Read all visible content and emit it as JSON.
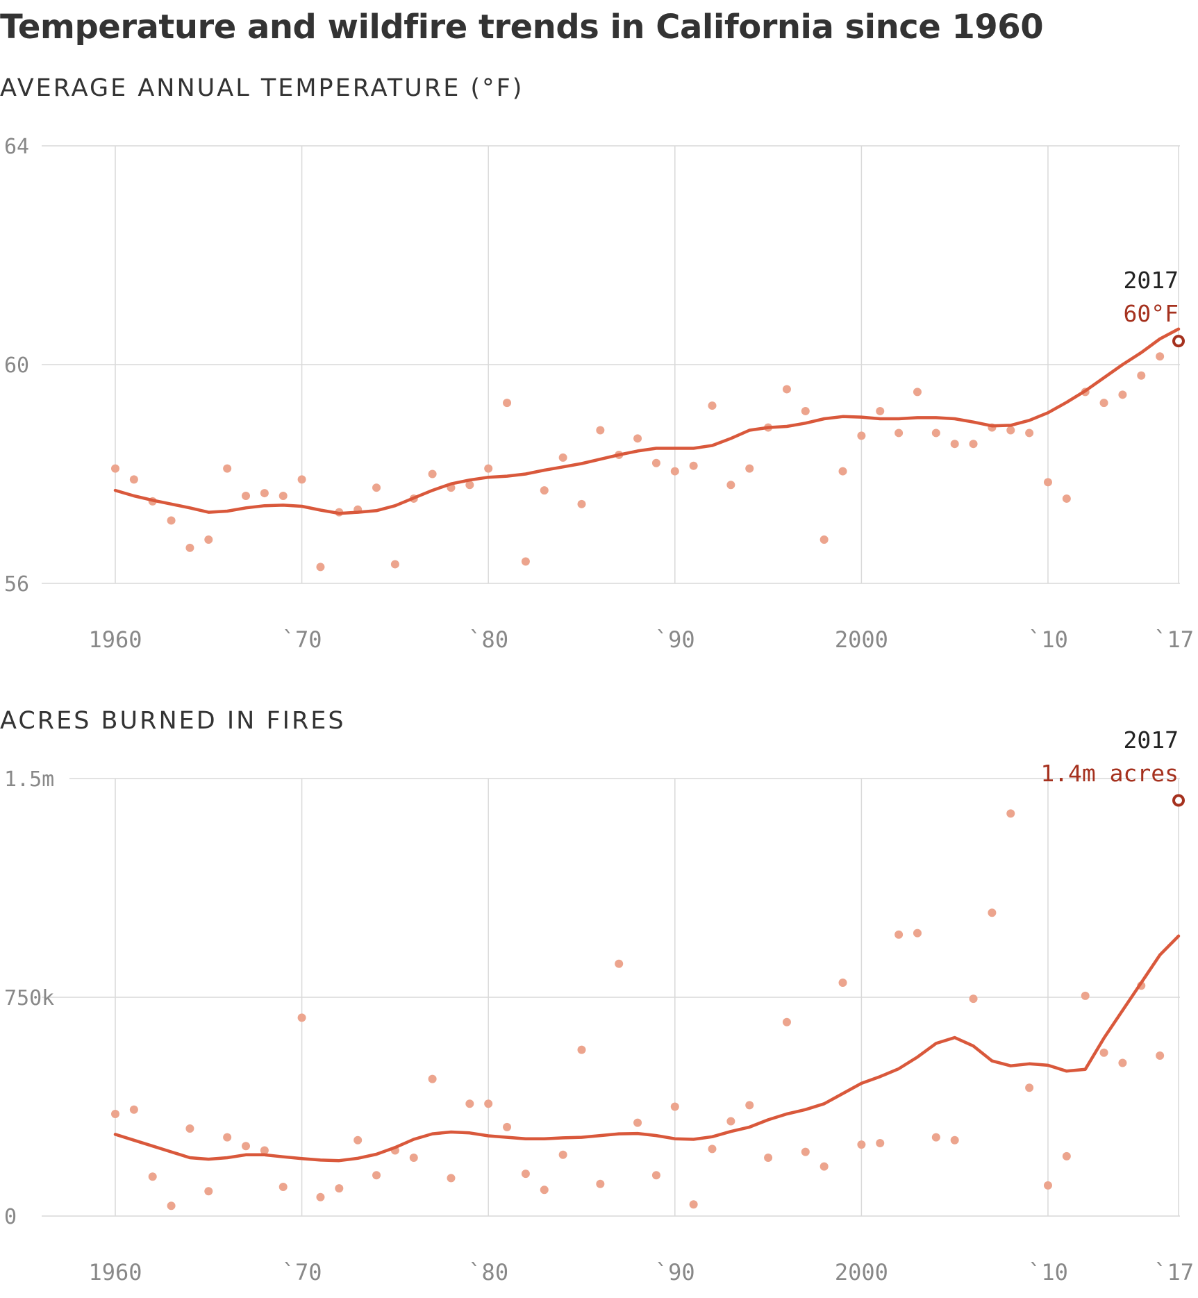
{
  "title": "Temperature and wildfire trends in California since 1960",
  "colors": {
    "trend": "#d9583b",
    "points": "#eca48d",
    "highlight": "#a5311e",
    "grid": "#d9d9d9",
    "text": "#333333",
    "ticks": "#888888"
  },
  "chart_data": [
    {
      "type": "scatter",
      "title": "AVERAGE ANNUAL TEMPERATURE (°F)",
      "xlabel": "",
      "ylabel": "",
      "xlim": [
        1960,
        2017
      ],
      "ylim": [
        56,
        64
      ],
      "x_ticks": [
        1960,
        1970,
        1980,
        1990,
        2000,
        2010,
        2017
      ],
      "x_tick_labels": [
        "1960",
        "`70",
        "`80",
        "`90",
        "2000",
        "`10",
        "`17"
      ],
      "y_ticks": [
        56,
        60,
        64
      ],
      "y_tick_labels": [
        "56",
        "60",
        "64"
      ],
      "grid": true,
      "annotation": {
        "year_label": "2017",
        "value_label": "60°F",
        "x": 2017,
        "y": 60.43
      },
      "series": [
        {
          "type": "scatter",
          "x": [
            1960,
            1961,
            1962,
            1963,
            1964,
            1965,
            1966,
            1967,
            1968,
            1969,
            1970,
            1971,
            1972,
            1973,
            1974,
            1975,
            1976,
            1977,
            1978,
            1979,
            1980,
            1981,
            1982,
            1983,
            1984,
            1985,
            1986,
            1987,
            1988,
            1989,
            1990,
            1991,
            1992,
            1993,
            1994,
            1995,
            1996,
            1997,
            1998,
            1999,
            2000,
            2001,
            2002,
            2003,
            2004,
            2005,
            2006,
            2007,
            2008,
            2009,
            2010,
            2011,
            2012,
            2013,
            2014,
            2015,
            2016
          ],
          "values": [
            58.1,
            57.9,
            57.5,
            57.15,
            56.65,
            56.8,
            58.1,
            57.6,
            57.65,
            57.6,
            57.9,
            56.3,
            57.3,
            57.35,
            57.75,
            56.35,
            57.55,
            58.0,
            57.75,
            57.8,
            58.1,
            59.3,
            56.4,
            57.7,
            58.3,
            57.45,
            58.8,
            58.35,
            58.65,
            58.2,
            58.05,
            58.15,
            59.25,
            57.8,
            58.1,
            58.85,
            59.55,
            59.15,
            56.8,
            58.05,
            58.7,
            59.15,
            58.75,
            59.5,
            58.75,
            58.55,
            58.55,
            58.85,
            58.8,
            58.75,
            57.85,
            57.55,
            59.5,
            59.3,
            59.45,
            59.8,
            60.15
          ]
        },
        {
          "type": "line",
          "x": [
            1960,
            1961,
            1962,
            1963,
            1964,
            1965,
            1966,
            1967,
            1968,
            1969,
            1970,
            1971,
            1972,
            1973,
            1974,
            1975,
            1976,
            1977,
            1978,
            1979,
            1980,
            1981,
            1982,
            1983,
            1984,
            1985,
            1986,
            1987,
            1988,
            1989,
            1990,
            1991,
            1992,
            1993,
            1994,
            1995,
            1996,
            1997,
            1998,
            1999,
            2000,
            2001,
            2002,
            2003,
            2004,
            2005,
            2006,
            2007,
            2008,
            2009,
            2010,
            2011,
            2012,
            2013,
            2014,
            2015,
            2016,
            2017
          ],
          "values": [
            57.7,
            57.6,
            57.52,
            57.45,
            57.38,
            57.3,
            57.32,
            57.38,
            57.42,
            57.43,
            57.41,
            57.34,
            57.28,
            57.3,
            57.33,
            57.42,
            57.56,
            57.7,
            57.82,
            57.89,
            57.94,
            57.96,
            58.0,
            58.07,
            58.13,
            58.19,
            58.27,
            58.35,
            58.42,
            58.47,
            58.47,
            58.47,
            58.52,
            58.65,
            58.8,
            58.85,
            58.87,
            58.93,
            59.01,
            59.05,
            59.04,
            59.01,
            59.01,
            59.03,
            59.03,
            59.01,
            58.95,
            58.88,
            58.89,
            58.98,
            59.12,
            59.31,
            59.52,
            59.76,
            60.0,
            60.22,
            60.47,
            60.65
          ]
        },
        {
          "type": "scatter",
          "x": [
            2017
          ],
          "values": [
            60.43
          ]
        }
      ]
    },
    {
      "type": "scatter",
      "title": "ACRES BURNED IN FIRES",
      "xlabel": "",
      "ylabel": "",
      "xlim": [
        1960,
        2017
      ],
      "ylim": [
        0,
        1500000
      ],
      "x_ticks": [
        1960,
        1970,
        1980,
        1990,
        2000,
        2010,
        2017
      ],
      "x_tick_labels": [
        "1960",
        "`70",
        "`80",
        "`90",
        "2000",
        "`10",
        "`17"
      ],
      "y_ticks": [
        0,
        750000,
        1500000
      ],
      "y_tick_labels": [
        "0",
        "750k",
        "1.5m"
      ],
      "grid": true,
      "annotation": {
        "year_label": "2017",
        "value_label": "1.4m acres",
        "x": 2017,
        "y": 1425000
      },
      "series": [
        {
          "type": "scatter",
          "x": [
            1960,
            1961,
            1962,
            1963,
            1964,
            1965,
            1966,
            1967,
            1968,
            1969,
            1970,
            1971,
            1972,
            1973,
            1974,
            1975,
            1976,
            1977,
            1978,
            1979,
            1980,
            1981,
            1982,
            1983,
            1984,
            1985,
            1986,
            1987,
            1988,
            1989,
            1990,
            1991,
            1992,
            1993,
            1994,
            1995,
            1996,
            1997,
            1998,
            1999,
            2000,
            2001,
            2002,
            2003,
            2004,
            2005,
            2006,
            2007,
            2008,
            2009,
            2010,
            2011,
            2012,
            2013,
            2014,
            2015,
            2016
          ],
          "values": [
            350000,
            365000,
            135000,
            35000,
            300000,
            85000,
            270000,
            240000,
            225000,
            100000,
            680000,
            65000,
            95000,
            260000,
            140000,
            225000,
            200000,
            470000,
            130000,
            385000,
            385000,
            305000,
            145000,
            90000,
            210000,
            570000,
            110000,
            865000,
            320000,
            140000,
            375000,
            40000,
            230000,
            325000,
            380000,
            200000,
            665000,
            220000,
            170000,
            800000,
            245000,
            250000,
            965000,
            970000,
            270000,
            260000,
            745000,
            1040000,
            1380000,
            440000,
            105000,
            205000,
            755000,
            560000,
            525000,
            790000,
            550000
          ]
        },
        {
          "type": "line",
          "x": [
            1960,
            1961,
            1962,
            1963,
            1964,
            1965,
            1966,
            1967,
            1968,
            1969,
            1970,
            1971,
            1972,
            1973,
            1974,
            1975,
            1976,
            1977,
            1978,
            1979,
            1980,
            1981,
            1982,
            1983,
            1984,
            1985,
            1986,
            1987,
            1988,
            1989,
            1990,
            1991,
            1992,
            1993,
            1994,
            1995,
            1996,
            1997,
            1998,
            1999,
            2000,
            2001,
            2002,
            2003,
            2004,
            2005,
            2006,
            2007,
            2008,
            2009,
            2010,
            2011,
            2012,
            2013,
            2014,
            2015,
            2016,
            2017
          ],
          "values": [
            280000,
            260000,
            240000,
            220000,
            200000,
            195000,
            200000,
            210000,
            210000,
            203000,
            197000,
            192000,
            190000,
            198000,
            212000,
            235000,
            263000,
            282000,
            288000,
            285000,
            275000,
            270000,
            265000,
            265000,
            268000,
            270000,
            276000,
            282000,
            283000,
            276000,
            265000,
            263000,
            272000,
            290000,
            305000,
            330000,
            350000,
            365000,
            385000,
            420000,
            455000,
            478000,
            505000,
            545000,
            592000,
            612000,
            583000,
            532000,
            515000,
            522000,
            517000,
            497000,
            503000,
            610000,
            705000,
            800000,
            895000,
            960000
          ]
        },
        {
          "type": "scatter",
          "x": [
            2017
          ],
          "values": [
            1425000
          ]
        }
      ]
    }
  ]
}
